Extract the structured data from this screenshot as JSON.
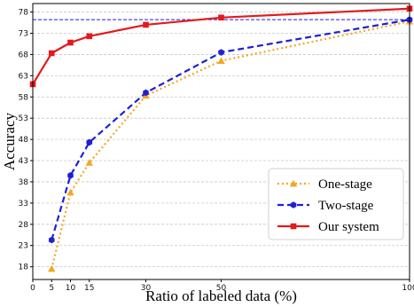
{
  "chart_data": {
    "type": "line",
    "xlabel": "Ratio of labeled data (%)",
    "ylabel": "Accuracy",
    "xlim": [
      0,
      100
    ],
    "ylim": [
      15,
      80
    ],
    "xticks": [
      0,
      5,
      10,
      15,
      30,
      50,
      100
    ],
    "yticks": [
      18,
      23,
      28,
      33,
      38,
      43,
      48,
      53,
      58,
      63,
      68,
      73,
      78
    ],
    "grid": "horizontal dashed",
    "legend_position": "lower-right",
    "reference_line": {
      "y": 76.2,
      "style": "dashed",
      "color": "#1f1fd6"
    },
    "series": [
      {
        "name": "One-stage",
        "color": "#f5a623",
        "line_style": "dotted",
        "marker": "triangle",
        "x": [
          5,
          10,
          15,
          30,
          50,
          100
        ],
        "y": [
          17.5,
          35.5,
          42.5,
          58.3,
          66.5,
          75.8
        ]
      },
      {
        "name": "Two-stage",
        "color": "#1f1fd6",
        "line_style": "dashed",
        "marker": "hexagon",
        "x": [
          5,
          10,
          15,
          30,
          50,
          100
        ],
        "y": [
          24.3,
          39.5,
          47.3,
          59.0,
          68.5,
          76.2
        ]
      },
      {
        "name": "Our system",
        "color": "#e31a1c",
        "line_style": "solid",
        "marker": "square",
        "x": [
          0,
          5,
          10,
          15,
          30,
          50,
          100
        ],
        "y": [
          61.0,
          68.3,
          70.8,
          72.3,
          75.0,
          76.7,
          78.8
        ]
      }
    ]
  }
}
